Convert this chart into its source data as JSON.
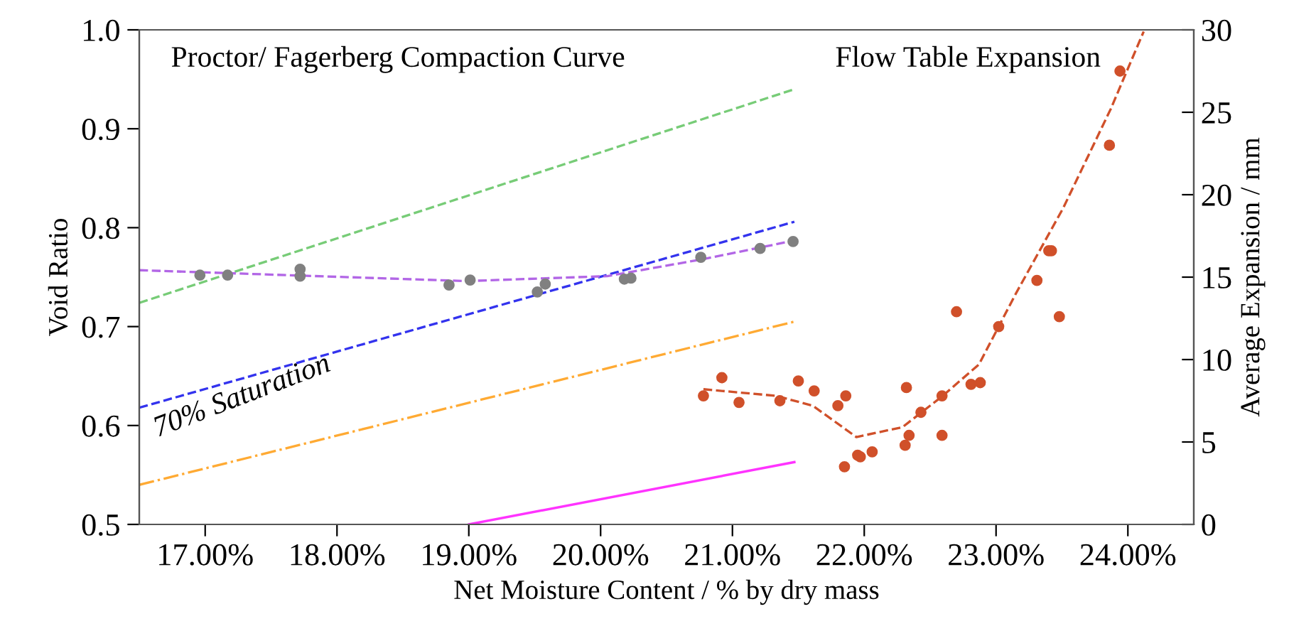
{
  "chart_data": {
    "type": "line",
    "xlabel": "Net Moisture Content / % by dry mass",
    "ylabel": "Void Ratio",
    "y2label": "Average Expansion / mm",
    "xlim": [
      16.5,
      24.5
    ],
    "xticks": [
      {
        "value": 17,
        "label": "17.00%"
      },
      {
        "value": 18,
        "label": "18.00%"
      },
      {
        "value": 19,
        "label": "19.00%"
      },
      {
        "value": 20,
        "label": "20.00%"
      },
      {
        "value": 21,
        "label": "21.00%"
      },
      {
        "value": 22,
        "label": "22.00%"
      },
      {
        "value": 23,
        "label": "23.00%"
      },
      {
        "value": 24,
        "label": "24.00%"
      }
    ],
    "ylim": [
      0.5,
      1.0
    ],
    "yticks": [
      0.5,
      0.6,
      0.7,
      0.8,
      0.9,
      {
        "value": 1.0,
        "label": "1.0"
      }
    ],
    "y2lim": [
      0,
      30
    ],
    "y2ticks": [
      0,
      5,
      10,
      15,
      20,
      25,
      30
    ],
    "grid": false,
    "legend": false,
    "annotations": [
      "Proctor/ Fagerberg Compaction Curve",
      "Flow Table Expansion",
      "70% Saturation"
    ],
    "series": [
      {
        "color": "#77cc77",
        "line_style": "dashed",
        "x": [
          16.5,
          21.47
        ],
        "values": [
          0.724,
          0.94
        ]
      },
      {
        "color": "#3333ee",
        "line_style": "dashed",
        "x": [
          16.5,
          21.47
        ],
        "values": [
          0.618,
          0.806
        ]
      },
      {
        "color": "#ffaa33",
        "line_style": "dashdot",
        "x": [
          16.5,
          21.47
        ],
        "values": [
          0.54,
          0.705
        ]
      },
      {
        "color": "#ff33ff",
        "line_style": "solid",
        "x": [
          19.0,
          21.47
        ],
        "values": [
          0.5,
          0.563
        ]
      },
      {
        "color": "#b266e6",
        "line_style": "dashed",
        "x": [
          16.5,
          18.98,
          20.05,
          20.77,
          21.47
        ],
        "values": [
          0.757,
          0.746,
          0.751,
          0.768,
          0.787
        ]
      },
      {
        "type": "scatter",
        "color": "#808080",
        "marker": "circle",
        "x": [
          16.96,
          17.17,
          17.72,
          17.72,
          18.85,
          19.01,
          19.52,
          19.58,
          20.18,
          20.23,
          20.76,
          21.21,
          21.46
        ],
        "values": [
          0.752,
          0.752,
          0.758,
          0.751,
          0.742,
          0.747,
          0.735,
          0.743,
          0.748,
          0.749,
          0.77,
          0.779,
          0.786
        ]
      },
      {
        "axis": "y2",
        "color": "#d0502a",
        "line_style": "dashed",
        "x": [
          20.78,
          21.33,
          21.61,
          21.94,
          22.29,
          22.58,
          22.87,
          23.15,
          23.51,
          23.87,
          24.12
        ],
        "values": [
          8.2,
          7.8,
          7.2,
          5.3,
          5.9,
          7.7,
          9.7,
          14.0,
          19.2,
          25.2,
          29.9
        ]
      },
      {
        "type": "scatter",
        "axis": "y2",
        "color": "#d0502a",
        "marker": "circle",
        "x": [
          20.78,
          20.92,
          21.05,
          21.36,
          21.5,
          21.62,
          21.8,
          21.86,
          21.85,
          21.95,
          21.97,
          22.06,
          22.31,
          22.32,
          22.34,
          22.43,
          22.59,
          22.59,
          22.7,
          22.81,
          22.88,
          23.02,
          23.31,
          23.4,
          23.42,
          23.48,
          23.86,
          23.94
        ],
        "values": [
          7.8,
          8.9,
          7.4,
          7.5,
          8.7,
          8.1,
          7.2,
          7.8,
          3.5,
          4.2,
          4.1,
          4.4,
          4.8,
          8.3,
          5.4,
          6.8,
          7.8,
          5.4,
          12.9,
          8.5,
          8.6,
          12.0,
          14.8,
          16.6,
          16.6,
          12.6,
          23.0,
          27.5
        ]
      }
    ]
  }
}
